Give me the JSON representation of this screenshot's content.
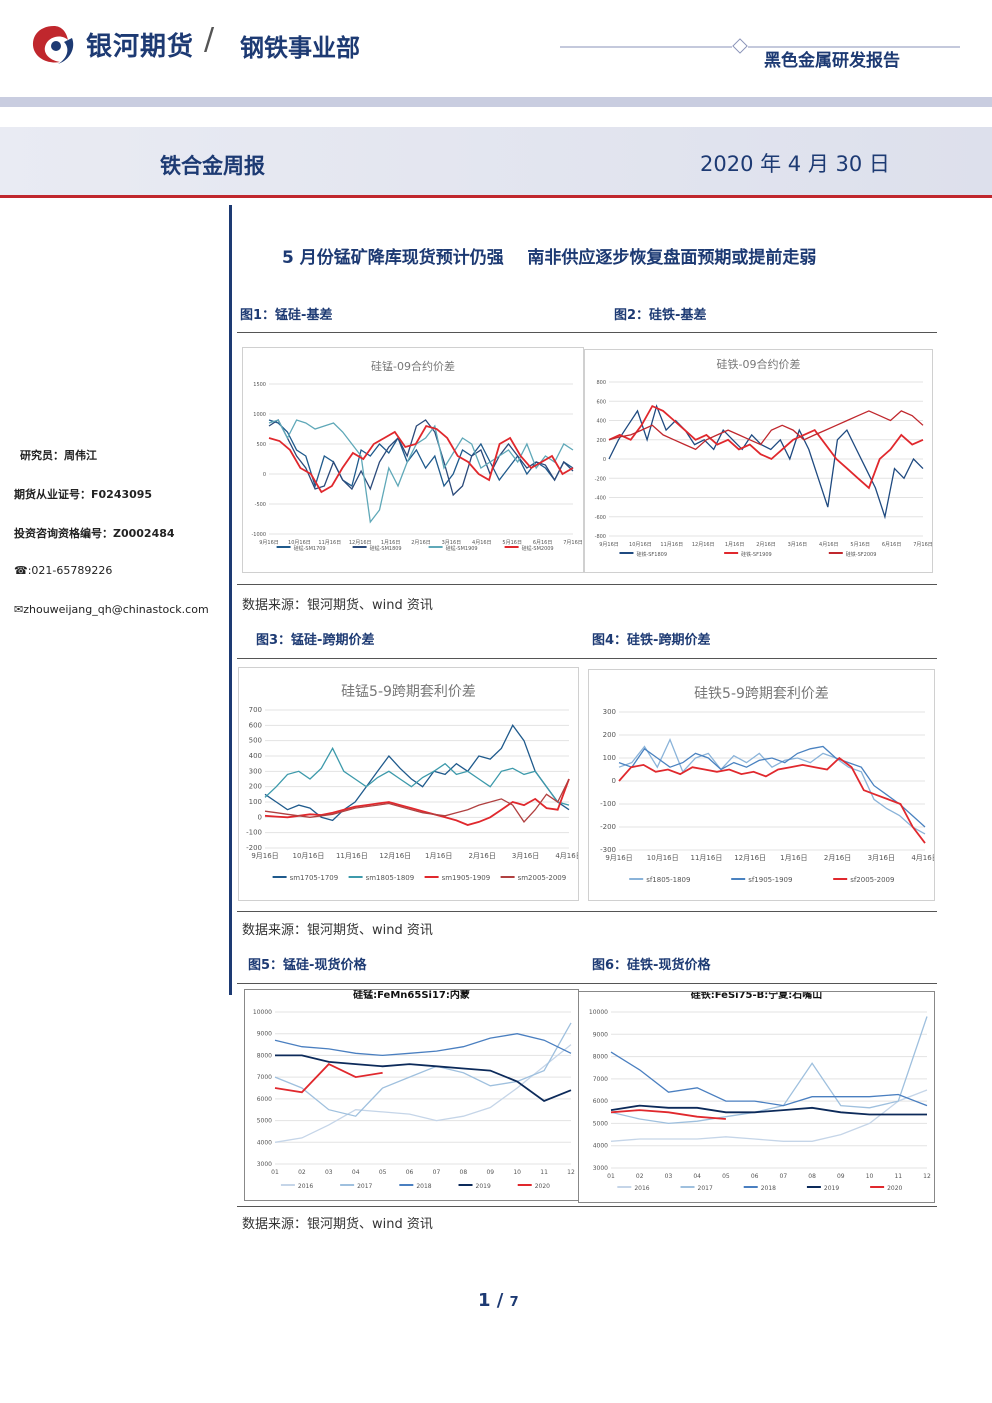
{
  "header": {
    "brand": "银河期货",
    "slash": "/",
    "dept": "钢铁事业部",
    "report_type": "黑色金属研发报告",
    "weekly": "铁合金周报",
    "date": "2020 年 4 月 30 日"
  },
  "headline": "5 月份锰矿降库现货预计仍强    南非供应逐步恢复盘面预期或提前走弱",
  "sidebar": {
    "researcher": "研究员：周伟江",
    "license": "期货从业证号：F0243095",
    "advisor": "投资咨询资格编号：Z0002484",
    "phone": "☎:021-65789226",
    "email": "✉zhouweijang_qh@chinastock.com"
  },
  "figures": {
    "f1": "图1：锰硅-基差",
    "f2": "图2：硅铁-基差",
    "f3": "图3：锰硅-跨期价差",
    "f4": "图4：硅铁-跨期价差",
    "f5": "图5：锰硅-现货价格",
    "f6": "图6：硅铁-现货价格"
  },
  "source": "数据来源：银河期货、wind 资讯",
  "page": {
    "current": "1",
    "total": "7"
  },
  "chart_data": [
    {
      "id": "c1",
      "type": "line",
      "title": "硅锰-09合约价差",
      "ylim": [
        -1000,
        1500
      ],
      "yticks": [
        "1500",
        "1000",
        "500",
        "0",
        "-500",
        "-1000"
      ],
      "xticks": [
        "9月16日",
        "10月16日",
        "11月16日",
        "12月16日",
        "1月16日",
        "2月16日",
        "3月16日",
        "4月16日",
        "5月16日",
        "6月16日",
        "7月16日"
      ],
      "series": [
        {
          "name": "硅锰-SM1709",
          "color": "#1f5a8c",
          "values": [
            900,
            850,
            700,
            400,
            300,
            -200,
            300,
            200,
            -100,
            -200,
            400,
            300,
            500,
            350,
            600,
            200,
            400,
            100,
            300,
            -200,
            0,
            400,
            300,
            500,
            200,
            -100,
            100,
            300,
            0,
            200,
            100,
            -100,
            200,
            100
          ]
        },
        {
          "name": "硅锰-SM1809",
          "color": "#2b4a7a",
          "values": [
            800,
            900,
            600,
            300,
            100,
            -250,
            -200,
            200,
            -100,
            -250,
            50,
            -250,
            200,
            450,
            600,
            300,
            800,
            900,
            700,
            200,
            -350,
            -200,
            300,
            400,
            0,
            300,
            500,
            300,
            100,
            200,
            150,
            -100,
            200,
            50
          ]
        },
        {
          "name": "硅锰-SM1909",
          "color": "#5fa8b8",
          "values": [
            850,
            900,
            600,
            900,
            850,
            750,
            800,
            850,
            700,
            500,
            300,
            -800,
            -600,
            100,
            -200,
            200,
            500,
            600,
            800,
            100,
            350,
            600,
            500,
            100,
            200,
            300,
            400,
            200,
            500,
            100,
            300,
            200,
            500,
            400
          ]
        },
        {
          "name": "硅锰-SM2009",
          "color": "#e0282d",
          "values": [
            600,
            550,
            400,
            100,
            0,
            -300,
            -200,
            100,
            350,
            250,
            500,
            600,
            700,
            450,
            500,
            800,
            750,
            600,
            300,
            200,
            0,
            -100,
            500,
            600,
            300,
            100,
            200,
            300,
            0,
            100
          ]
        }
      ],
      "legend": [
        "硅锰-SM1709",
        "硅锰-SM1809",
        "硅锰-SM1909",
        "硅锰-SM2009"
      ]
    },
    {
      "id": "c2",
      "type": "line",
      "title": "硅铁-09合约价差",
      "ylim": [
        -800,
        800
      ],
      "yticks": [
        "800",
        "600",
        "400",
        "200",
        "0",
        "-200",
        "-400",
        "-600",
        "-800"
      ],
      "xticks": [
        "9月16日",
        "10月16日",
        "11月16日",
        "12月16日",
        "1月16日",
        "2月16日",
        "3月16日",
        "4月16日",
        "5月16日",
        "6月16日",
        "7月16日"
      ],
      "series": [
        {
          "name": "硅铁-SF1809",
          "color": "#1f4a80",
          "values": [
            0,
            200,
            350,
            500,
            200,
            550,
            300,
            400,
            300,
            150,
            200,
            100,
            300,
            200,
            100,
            250,
            150,
            100,
            200,
            0,
            300,
            100,
            -200,
            -500,
            200,
            300,
            100,
            -100,
            -300,
            -600,
            -100,
            -200,
            0,
            -100
          ]
        },
        {
          "name": "硅铁-SF1909",
          "color": "#e0282d",
          "values": [
            200,
            250,
            200,
            350,
            550,
            500,
            400,
            300,
            200,
            250,
            150,
            200,
            100,
            150,
            50,
            0,
            100,
            200,
            250,
            300,
            150,
            0,
            -100,
            -200,
            -300,
            0,
            100,
            250,
            150,
            200
          ]
        },
        {
          "name": "硅铁-SF2009",
          "color": "#c0272d",
          "values": [
            200,
            230,
            250,
            300,
            350,
            250,
            200,
            150,
            100,
            200,
            250,
            300,
            250,
            200,
            150,
            300,
            350,
            300,
            200,
            250,
            300,
            350,
            400,
            450,
            500,
            450,
            400,
            500,
            450,
            350
          ]
        }
      ],
      "legend": [
        "硅铁-SF1809",
        "硅铁-SF1909",
        "硅铁-SF2009"
      ]
    },
    {
      "id": "c3",
      "type": "line",
      "title": "硅锰5-9跨期套利价差",
      "ylim": [
        -200,
        700
      ],
      "yticks": [
        "700",
        "600",
        "500",
        "400",
        "300",
        "200",
        "100",
        "0",
        "-100",
        "-200"
      ],
      "xticks": [
        "9月16日",
        "10月16日",
        "11月16日",
        "12月16日",
        "1月16日",
        "2月16日",
        "3月16日",
        "4月16日"
      ],
      "series": [
        {
          "name": "sm1705-1709",
          "color": "#1f5a8c",
          "values": [
            150,
            100,
            50,
            80,
            60,
            0,
            -20,
            50,
            100,
            200,
            300,
            400,
            320,
            250,
            200,
            300,
            280,
            350,
            300,
            400,
            380,
            450,
            600,
            500,
            300,
            200,
            100,
            50
          ]
        },
        {
          "name": "sm1805-1809",
          "color": "#3d9aab",
          "values": [
            130,
            200,
            280,
            300,
            250,
            320,
            450,
            300,
            250,
            200,
            260,
            300,
            250,
            200,
            260,
            300,
            350,
            280,
            300,
            250,
            200,
            300,
            320,
            280,
            300,
            200,
            100,
            80
          ]
        },
        {
          "name": "sm1905-1909",
          "color": "#e0282d",
          "values": [
            10,
            5,
            0,
            10,
            20,
            15,
            30,
            50,
            70,
            80,
            90,
            100,
            80,
            60,
            40,
            20,
            0,
            -20,
            -50,
            -30,
            0,
            50,
            100,
            80,
            120,
            60,
            50,
            250
          ]
        },
        {
          "name": "sm2005-2009",
          "color": "#b04040",
          "values": [
            40,
            30,
            20,
            10,
            0,
            10,
            20,
            40,
            60,
            70,
            80,
            90,
            70,
            50,
            30,
            20,
            10,
            30,
            50,
            80,
            100,
            120,
            80,
            -30,
            50,
            150,
            100,
            250
          ]
        }
      ],
      "legend": [
        "sm1705-1709",
        "sm1805-1809",
        "sm1905-1909",
        "sm2005-2009"
      ]
    },
    {
      "id": "c4",
      "type": "line",
      "title": "硅铁5-9跨期套利价差",
      "ylim": [
        -300,
        300
      ],
      "yticks": [
        "300",
        "200",
        "100",
        "0",
        "-100",
        "-200",
        "-300"
      ],
      "xticks": [
        "9月16日",
        "10月16日",
        "11月16日",
        "12月16日",
        "1月16日",
        "2月16日",
        "3月16日",
        "4月16日"
      ],
      "series": [
        {
          "name": "sf1805-1809",
          "color": "#8ab3d9",
          "values": [
            60,
            80,
            150,
            60,
            180,
            40,
            100,
            120,
            50,
            110,
            80,
            120,
            60,
            90,
            100,
            80,
            120,
            100,
            60,
            40,
            -80,
            -120,
            -150,
            -200,
            -230
          ]
        },
        {
          "name": "sf1905-1909",
          "color": "#4a82c0",
          "values": [
            80,
            60,
            140,
            100,
            60,
            80,
            120,
            100,
            50,
            80,
            60,
            90,
            100,
            80,
            120,
            140,
            150,
            100,
            80,
            60,
            -20,
            -60,
            -100,
            -150,
            -200
          ]
        },
        {
          "name": "sf2005-2009",
          "color": "#e0282d",
          "values": [
            0,
            60,
            70,
            40,
            50,
            30,
            60,
            50,
            40,
            50,
            30,
            40,
            20,
            50,
            60,
            70,
            60,
            50,
            100,
            60,
            -40,
            -60,
            -80,
            -100,
            -200,
            -270
          ]
        }
      ],
      "legend": [
        "sf1805-1809",
        "sf1905-1909",
        "sf2005-2009"
      ]
    },
    {
      "id": "c5",
      "type": "line",
      "title": "硅锰:FeMn65Si17:内蒙",
      "ylim": [
        3000,
        10000
      ],
      "yticks": [
        "10000",
        "9000",
        "8000",
        "7000",
        "6000",
        "5000",
        "4000",
        "3000"
      ],
      "xticks": [
        "01",
        "02",
        "03",
        "04",
        "05",
        "06",
        "07",
        "08",
        "09",
        "10",
        "11",
        "12"
      ],
      "series": [
        {
          "name": "2016",
          "color": "#c5d5e8",
          "values": [
            4000,
            4200,
            4800,
            5500,
            5400,
            5300,
            5000,
            5200,
            5600,
            6500,
            7500,
            8500
          ]
        },
        {
          "name": "2017",
          "color": "#9fc0de",
          "values": [
            7000,
            6500,
            5500,
            5200,
            6500,
            7000,
            7500,
            7200,
            6600,
            6800,
            7300,
            9500
          ]
        },
        {
          "name": "2018",
          "color": "#4a7fc0",
          "values": [
            8700,
            8400,
            8300,
            8100,
            8000,
            8100,
            8200,
            8400,
            8800,
            9000,
            8700,
            8100
          ]
        },
        {
          "name": "2019",
          "color": "#0c2a5a",
          "values": [
            8000,
            8000,
            7700,
            7600,
            7500,
            7600,
            7500,
            7400,
            7300,
            6800,
            5900,
            6400
          ]
        },
        {
          "name": "2020",
          "color": "#e0282d",
          "values": [
            6500,
            6300,
            7600,
            7000,
            7200
          ]
        }
      ],
      "legend": [
        "2016",
        "2017",
        "2018",
        "2019",
        "2020"
      ]
    },
    {
      "id": "c6",
      "type": "line",
      "title": "硅铁:FeSi75-B:宁夏:石嘴山",
      "ylim": [
        3000,
        10000
      ],
      "yticks": [
        "10000",
        "9000",
        "8000",
        "7000",
        "6000",
        "5000",
        "4000",
        "3000"
      ],
      "xticks": [
        "01",
        "02",
        "03",
        "04",
        "05",
        "06",
        "07",
        "08",
        "09",
        "10",
        "11",
        "12"
      ],
      "series": [
        {
          "name": "2016",
          "color": "#c5d5e8",
          "values": [
            4200,
            4300,
            4300,
            4300,
            4400,
            4300,
            4200,
            4200,
            4500,
            5000,
            6000,
            6500
          ]
        },
        {
          "name": "2017",
          "color": "#9fc0de",
          "values": [
            5500,
            5200,
            5000,
            5100,
            5300,
            5500,
            5800,
            7700,
            5800,
            5700,
            6000,
            9800
          ]
        },
        {
          "name": "2018",
          "color": "#4a7fc0",
          "values": [
            8200,
            7400,
            6400,
            6600,
            6000,
            6000,
            5800,
            6200,
            6200,
            6200,
            6300,
            5800
          ]
        },
        {
          "name": "2019",
          "color": "#0c2a5a",
          "values": [
            5600,
            5800,
            5700,
            5700,
            5500,
            5500,
            5600,
            5700,
            5500,
            5400,
            5400,
            5400
          ]
        },
        {
          "name": "2020",
          "color": "#e0282d",
          "values": [
            5500,
            5600,
            5500,
            5300,
            5200
          ]
        }
      ],
      "legend": [
        "2016",
        "2017",
        "2018",
        "2019",
        "2020"
      ]
    }
  ]
}
